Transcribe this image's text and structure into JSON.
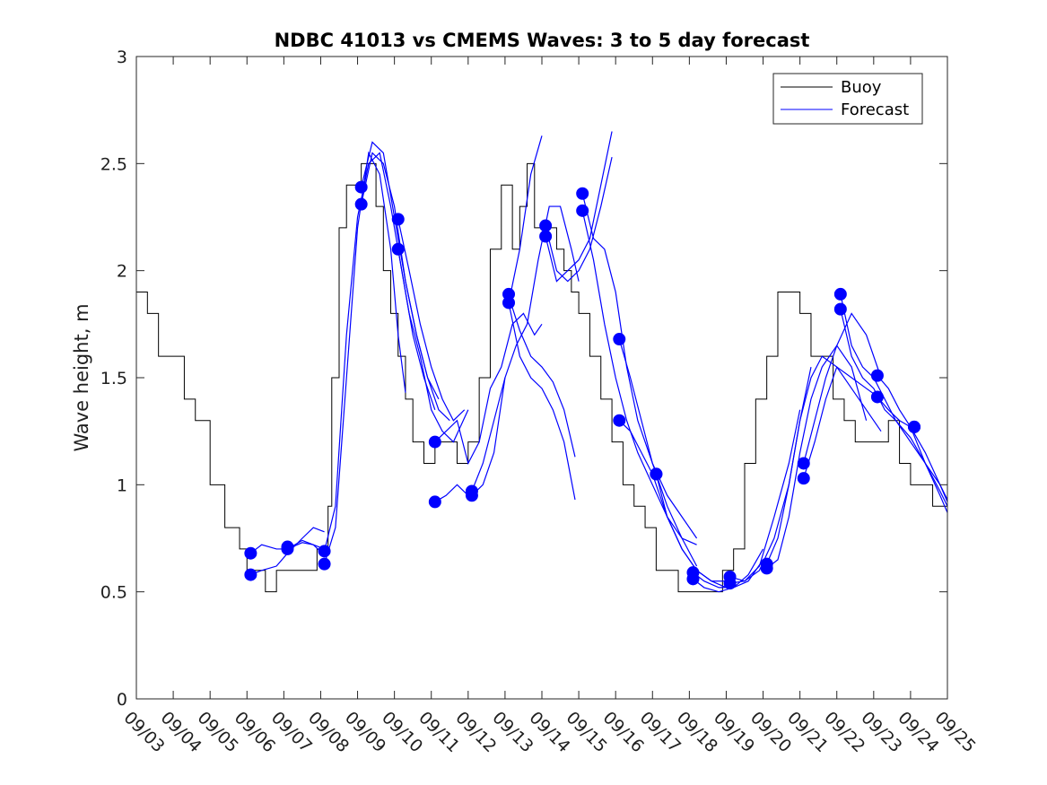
{
  "chart_data": {
    "type": "line",
    "title": "NDBC 41013 vs CMEMS Waves: 3 to 5 day forecast",
    "xlabel": "",
    "ylabel": "Wave height, m",
    "xlim": [
      0,
      22
    ],
    "ylim": [
      0,
      3
    ],
    "y_ticks": [
      0,
      0.5,
      1,
      1.5,
      2,
      2.5,
      3
    ],
    "y_tick_labels": [
      "0",
      "0.5",
      "1",
      "1.5",
      "2",
      "2.5",
      "3"
    ],
    "x_ticks": [
      0,
      1,
      2,
      3,
      4,
      5,
      6,
      7,
      8,
      9,
      10,
      11,
      12,
      13,
      14,
      15,
      16,
      17,
      18,
      19,
      20,
      21,
      22
    ],
    "x_tick_labels": [
      "09/03",
      "09/04",
      "09/05",
      "09/06",
      "09/07",
      "09/08",
      "09/09",
      "09/10",
      "09/11",
      "09/12",
      "09/13",
      "09/14",
      "09/15",
      "09/16",
      "09/17",
      "09/18",
      "09/19",
      "09/20",
      "09/21",
      "09/22",
      "09/23",
      "09/24",
      "09/25"
    ],
    "x_unit": "days since 09/03 00:00",
    "legend": {
      "position": "top-right",
      "entries": [
        "Buoy",
        "Forecast"
      ]
    },
    "colors": {
      "buoy": "#000000",
      "forecast": "#0000ff",
      "marker": "#0000ff"
    },
    "series": [
      {
        "name": "Buoy",
        "color": "#000000",
        "x": [
          0,
          0.3,
          0.6,
          1.0,
          1.3,
          1.6,
          2.0,
          2.4,
          2.8,
          3.0,
          3.5,
          3.8,
          4.2,
          4.6,
          4.9,
          5.1,
          5.2,
          5.3,
          5.5,
          5.7,
          5.9,
          6.1,
          6.3,
          6.5,
          6.7,
          6.9,
          7.1,
          7.3,
          7.5,
          7.8,
          8.1,
          8.4,
          8.7,
          9.0,
          9.3,
          9.6,
          9.9,
          10.2,
          10.4,
          10.6,
          10.8,
          11.0,
          11.2,
          11.4,
          11.6,
          11.8,
          12.0,
          12.3,
          12.6,
          12.9,
          13.2,
          13.5,
          13.8,
          14.1,
          14.4,
          14.7,
          15.0,
          15.3,
          15.6,
          15.9,
          16.2,
          16.5,
          16.8,
          17.1,
          17.4,
          17.7,
          18.0,
          18.3,
          18.6,
          18.9,
          19.2,
          19.5,
          19.8,
          20.1,
          20.4,
          20.7,
          21.0,
          21.3,
          21.6,
          22.0
        ],
        "y": [
          1.9,
          1.75,
          1.6,
          1.55,
          1.4,
          1.25,
          1.0,
          0.8,
          0.7,
          0.6,
          0.5,
          0.55,
          0.55,
          0.6,
          0.65,
          0.7,
          0.9,
          1.5,
          2.2,
          2.35,
          2.4,
          2.5,
          2.45,
          2.3,
          2.0,
          1.75,
          1.6,
          1.4,
          1.2,
          1.1,
          1.15,
          1.2,
          1.1,
          1.2,
          1.45,
          2.1,
          2.35,
          2.1,
          2.3,
          2.5,
          2.2,
          2.15,
          2.2,
          2.05,
          2.0,
          1.85,
          1.75,
          1.6,
          1.35,
          1.2,
          1.0,
          0.85,
          0.75,
          0.6,
          0.55,
          0.5,
          0.45,
          0.45,
          0.5,
          0.55,
          0.7,
          1.1,
          1.4,
          1.6,
          1.85,
          1.9,
          1.8,
          1.6,
          1.55,
          1.4,
          1.3,
          1.2,
          1.15,
          1.2,
          1.25,
          1.1,
          1.0,
          0.95,
          0.9,
          0.87
        ]
      },
      {
        "name": "Forecast",
        "color": "#0000ff",
        "runs": [
          {
            "x": [
              3.1,
              3.4,
              3.8,
              4.1,
              4.5,
              4.8,
              5.1
            ],
            "y": [
              0.58,
              0.6,
              0.62,
              0.68,
              0.75,
              0.8,
              0.78
            ]
          },
          {
            "x": [
              3.1,
              3.4,
              3.8,
              4.1,
              4.5,
              4.8,
              5.1
            ],
            "y": [
              0.68,
              0.72,
              0.7,
              0.7,
              0.74,
              0.72,
              0.7
            ]
          },
          {
            "x": [
              4.1,
              4.5,
              4.8,
              5.1
            ],
            "y": [
              0.7,
              0.73,
              0.72,
              0.67
            ]
          },
          {
            "x": [
              5.1,
              5.4,
              5.7,
              6.0,
              6.3,
              6.6,
              6.9,
              7.1,
              7.3
            ],
            "y": [
              0.63,
              0.8,
              1.5,
              2.2,
              2.55,
              2.45,
              2.1,
              1.7,
              1.43
            ]
          },
          {
            "x": [
              5.1,
              5.4,
              5.7,
              6.0,
              6.3,
              6.6,
              6.9,
              7.2,
              7.5,
              7.8,
              8.1
            ],
            "y": [
              0.69,
              0.9,
              1.7,
              2.25,
              2.5,
              2.55,
              2.3,
              2.0,
              1.7,
              1.5,
              1.35
            ]
          },
          {
            "x": [
              6.1,
              6.4,
              6.7,
              7.0,
              7.3,
              7.6,
              7.9,
              8.2
            ],
            "y": [
              2.31,
              2.55,
              2.5,
              2.3,
              1.95,
              1.7,
              1.5,
              1.4
            ]
          },
          {
            "x": [
              6.1,
              6.4,
              6.7,
              7.0,
              7.3,
              7.6,
              7.9,
              8.2,
              8.5
            ],
            "y": [
              2.39,
              2.6,
              2.55,
              2.25,
              1.95,
              1.7,
              1.5,
              1.35,
              1.3
            ]
          },
          {
            "x": [
              7.1,
              7.4,
              7.7,
              8.0,
              8.3,
              8.6,
              8.9
            ],
            "y": [
              2.24,
              2.0,
              1.75,
              1.55,
              1.4,
              1.3,
              1.35
            ]
          },
          {
            "x": [
              7.1,
              7.4,
              7.7,
              8.0,
              8.3,
              8.6,
              9.0
            ],
            "y": [
              2.1,
              1.8,
              1.6,
              1.35,
              1.25,
              1.2,
              1.35
            ]
          },
          {
            "x": [
              8.1,
              8.4,
              8.7,
              9.0
            ],
            "y": [
              0.92,
              0.95,
              1.0,
              0.95
            ]
          },
          {
            "x": [
              8.1,
              8.4,
              8.7,
              9.0,
              9.3,
              9.6,
              9.9,
              10.2,
              10.5,
              10.8,
              11.0
            ],
            "y": [
              1.2,
              1.25,
              1.3,
              1.1,
              1.2,
              1.45,
              1.55,
              1.75,
              1.8,
              1.7,
              1.75
            ]
          },
          {
            "x": [
              9.1,
              9.4,
              9.7,
              10.0
            ],
            "y": [
              0.95,
              1.0,
              1.15,
              1.5
            ]
          },
          {
            "x": [
              9.1,
              9.4,
              9.7,
              10.0,
              10.3,
              10.6,
              10.9,
              11.2,
              11.5,
              11.8,
              12.0
            ],
            "y": [
              0.97,
              1.1,
              1.3,
              1.5,
              1.65,
              1.75,
              2.05,
              2.3,
              2.3,
              2.1,
              1.95
            ]
          },
          {
            "x": [
              10.1,
              10.4,
              10.7,
              11.0,
              11.3,
              11.6,
              11.9
            ],
            "y": [
              1.85,
              1.6,
              1.5,
              1.45,
              1.35,
              1.2,
              0.93
            ]
          },
          {
            "x": [
              10.1,
              10.4,
              10.7,
              11.0,
              11.3,
              11.6,
              11.9
            ],
            "y": [
              1.88,
              1.72,
              1.6,
              1.55,
              1.48,
              1.35,
              1.13
            ]
          },
          {
            "x": [
              10.1,
              10.4,
              10.7,
              11.0
            ],
            "y": [
              1.85,
              2.1,
              2.45,
              2.63
            ]
          },
          {
            "x": [
              11.1,
              11.4,
              11.7,
              12.0,
              12.3,
              12.6,
              12.9
            ],
            "y": [
              2.21,
              2.0,
              1.95,
              2.0,
              2.1,
              2.3,
              2.53
            ]
          },
          {
            "x": [
              11.1,
              11.4,
              11.7,
              12.0,
              12.3,
              12.6,
              12.9
            ],
            "y": [
              2.16,
              1.95,
              2.0,
              2.05,
              2.15,
              2.4,
              2.65
            ]
          },
          {
            "x": [
              12.1,
              12.4,
              12.7,
              13.0,
              13.3,
              13.6,
              14.0,
              14.4,
              14.8,
              15.2
            ],
            "y": [
              2.36,
              2.15,
              2.1,
              1.9,
              1.55,
              1.3,
              1.1,
              0.95,
              0.85,
              0.75
            ]
          },
          {
            "x": [
              12.1,
              12.4,
              12.7,
              13.0,
              13.3,
              13.6,
              14.0,
              14.4,
              14.8,
              15.2
            ],
            "y": [
              2.28,
              2.05,
              1.75,
              1.5,
              1.3,
              1.15,
              1.0,
              0.85,
              0.75,
              0.72
            ]
          },
          {
            "x": [
              13.1,
              13.4,
              13.7,
              14.0,
              14.4,
              14.8,
              15.2
            ],
            "y": [
              1.68,
              1.5,
              1.3,
              1.1,
              0.9,
              0.75,
              0.62
            ]
          },
          {
            "x": [
              13.1,
              13.4,
              13.7,
              14.0,
              14.4,
              14.8,
              15.2,
              15.6,
              16.0
            ],
            "y": [
              1.3,
              1.25,
              1.15,
              1.05,
              0.85,
              0.7,
              0.6,
              0.55,
              0.55
            ]
          },
          {
            "x": [
              14.1,
              14.4,
              14.8,
              15.2,
              15.6,
              16.0
            ],
            "y": [
              1.05,
              0.85,
              0.7,
              0.6,
              0.55,
              0.52
            ]
          },
          {
            "x": [
              15.1,
              15.4,
              15.8,
              16.2,
              16.6,
              17.0
            ],
            "y": [
              0.59,
              0.55,
              0.52,
              0.52,
              0.55,
              0.65
            ]
          },
          {
            "x": [
              15.1,
              15.4,
              15.8,
              16.2,
              16.6,
              17.0
            ],
            "y": [
              0.56,
              0.52,
              0.5,
              0.52,
              0.58,
              0.7
            ]
          },
          {
            "x": [
              16.1,
              16.5,
              16.9,
              17.3,
              17.7,
              18.0,
              18.3
            ],
            "y": [
              0.57,
              0.55,
              0.6,
              0.75,
              1.0,
              1.3,
              1.55
            ]
          },
          {
            "x": [
              16.1,
              16.5,
              16.9,
              17.3,
              17.7,
              18.0
            ],
            "y": [
              0.54,
              0.55,
              0.62,
              0.85,
              1.1,
              1.35
            ]
          },
          {
            "x": [
              17.1,
              17.4,
              17.7,
              18.0,
              18.3,
              18.6,
              19.0,
              19.4,
              19.8,
              20.2
            ],
            "y": [
              0.63,
              0.75,
              1.0,
              1.3,
              1.5,
              1.6,
              1.55,
              1.45,
              1.35,
              1.25
            ]
          },
          {
            "x": [
              17.1,
              17.4,
              17.7,
              18.0,
              18.3,
              18.6,
              19.0,
              19.4,
              19.8
            ],
            "y": [
              0.61,
              0.65,
              0.85,
              1.15,
              1.4,
              1.55,
              1.65,
              1.55,
              1.3
            ]
          },
          {
            "x": [
              18.1,
              18.4,
              18.7,
              19.0,
              19.4,
              19.8,
              20.2
            ],
            "y": [
              1.1,
              1.3,
              1.5,
              1.65,
              1.8,
              1.7,
              1.5
            ]
          },
          {
            "x": [
              18.1,
              18.4,
              18.7,
              19.0,
              19.4,
              19.8,
              20.2
            ],
            "y": [
              1.03,
              1.2,
              1.4,
              1.55,
              1.5,
              1.45,
              1.4
            ]
          },
          {
            "x": [
              19.1,
              19.4,
              19.7,
              20.0,
              20.3,
              20.6,
              21.0,
              21.4,
              21.8,
              22.0
            ],
            "y": [
              1.89,
              1.65,
              1.55,
              1.5,
              1.4,
              1.3,
              1.2,
              1.1,
              0.97,
              0.9
            ]
          },
          {
            "x": [
              19.1,
              19.4,
              19.7,
              20.0,
              20.3,
              20.6,
              21.0,
              21.4,
              21.8,
              22.0
            ],
            "y": [
              1.82,
              1.6,
              1.5,
              1.45,
              1.35,
              1.3,
              1.22,
              1.1,
              0.95,
              0.87
            ]
          },
          {
            "x": [
              20.1,
              20.4,
              20.7,
              21.0,
              21.4,
              21.8,
              22.0
            ],
            "y": [
              1.51,
              1.45,
              1.35,
              1.27,
              1.1,
              1.0,
              0.93
            ]
          },
          {
            "x": [
              20.1,
              20.4,
              20.7,
              21.0,
              21.4,
              21.8,
              22.0
            ],
            "y": [
              1.41,
              1.35,
              1.3,
              1.27,
              1.15,
              1.0,
              0.92
            ]
          }
        ],
        "markers": {
          "x": [
            3.1,
            3.1,
            4.1,
            4.1,
            5.1,
            5.1,
            6.1,
            6.1,
            7.1,
            7.1,
            8.1,
            8.1,
            9.1,
            9.1,
            10.1,
            10.1,
            11.1,
            11.1,
            12.1,
            12.1,
            13.1,
            13.1,
            14.1,
            14.1,
            15.1,
            15.1,
            16.1,
            16.1,
            17.1,
            17.1,
            18.1,
            18.1,
            19.1,
            19.1,
            20.1,
            20.1,
            21.1,
            21.1
          ],
          "y": [
            0.68,
            0.58,
            0.71,
            0.7,
            0.69,
            0.63,
            2.39,
            2.31,
            2.24,
            2.1,
            0.92,
            1.2,
            0.97,
            0.95,
            1.89,
            1.85,
            2.21,
            2.16,
            2.36,
            2.28,
            1.68,
            1.3,
            1.05,
            1.05,
            0.59,
            0.56,
            0.57,
            0.54,
            0.63,
            0.61,
            1.1,
            1.03,
            1.89,
            1.82,
            1.51,
            1.41,
            1.27,
            1.27
          ]
        }
      }
    ]
  }
}
